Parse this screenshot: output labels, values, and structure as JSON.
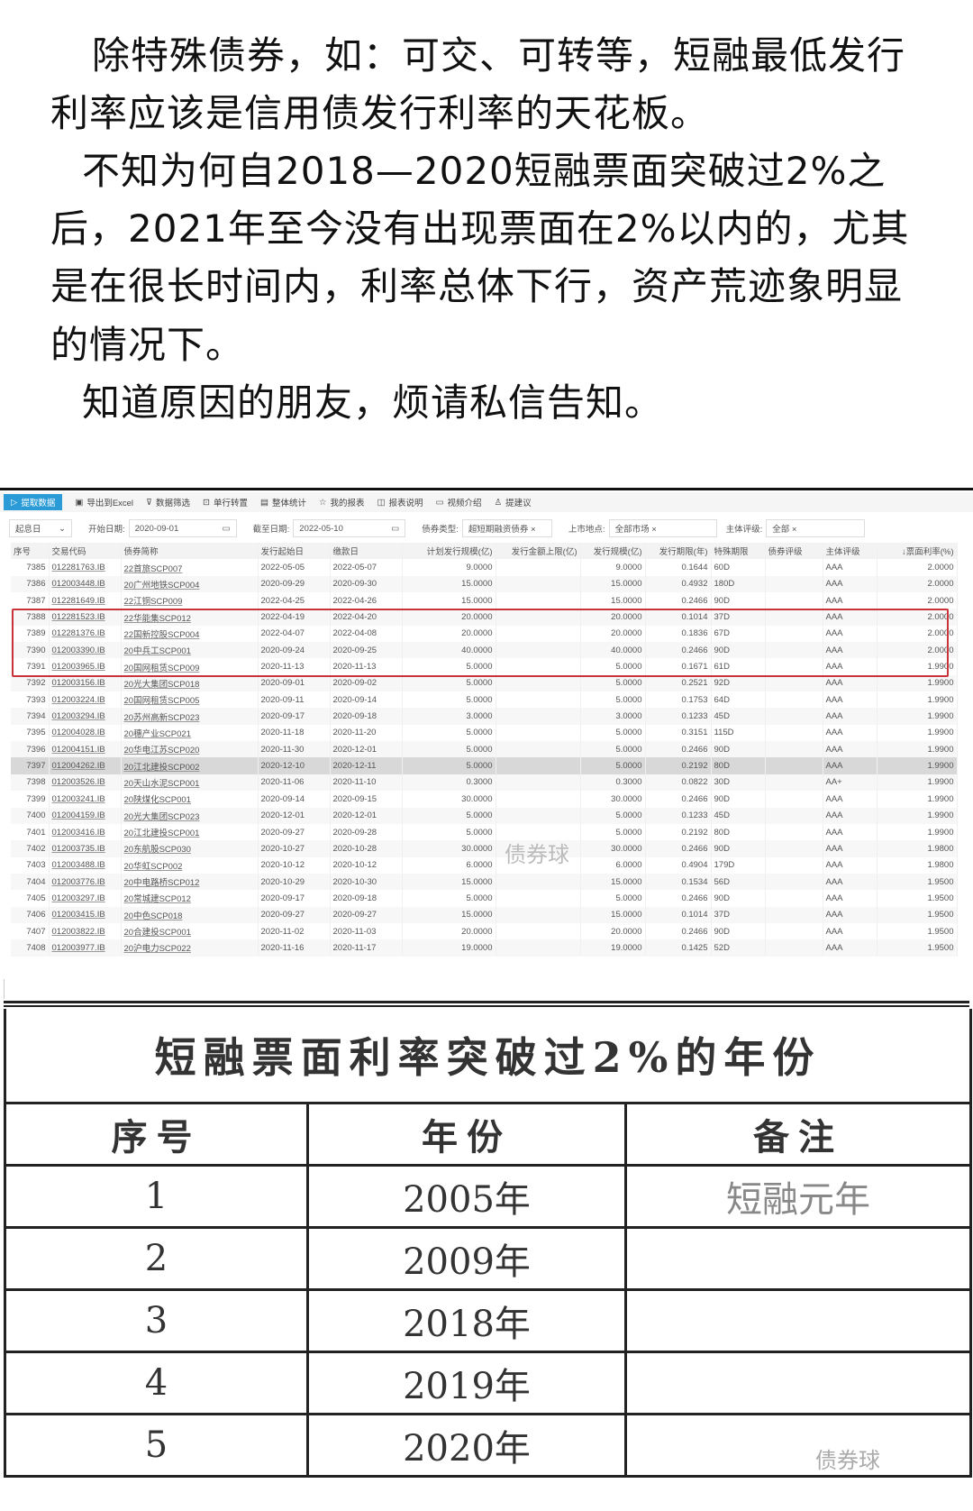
{
  "paragraph_lines": [
    "除特殊债券，如：可交、可转等，短融最低发行",
    "利率应该是信用债发行利率的天花板。",
    "不知为何自2018—2020短融票面突破过2%之",
    "后，2021年至今没有出现票面在2%以内的，尤其",
    "是在很长时间内，利率总体下行，资产荒迹象明显",
    "的情况下。",
    "知道原因的朋友，烦请私信告知。"
  ],
  "toolbar": {
    "items": [
      "提取数据",
      "导出到Excel",
      "数据筛选",
      "单行转置",
      "整体统计",
      "我的报表",
      "报表说明",
      "视频介绍",
      "提建议"
    ],
    "accent": "#2a9bd6"
  },
  "filters": {
    "date_type": "起息日",
    "start_label": "开始日期:",
    "start_value": "2020-09-01",
    "end_label": "截至日期:",
    "end_value": "2022-05-10",
    "bond_type_label": "债券类型:",
    "bond_type_value": "超短期融资债券 ×",
    "market_label": "上市地点:",
    "market_value": "全部市场 ×",
    "rating_label": "主体评级:",
    "rating_value": "全部 ×"
  },
  "table": {
    "columns": [
      "序号",
      "交易代码",
      "债券简称",
      "发行起始日",
      "缴款日",
      "计划发行规模(亿)",
      "发行金额上限(亿)",
      "发行规模(亿)",
      "发行期限(年)",
      "特殊期限",
      "债券评级",
      "主体评级",
      "↓票面利率(%)"
    ],
    "rows": [
      [
        "7385",
        "012281763.IB",
        "22首旅SCP007",
        "2022-05-05",
        "2022-05-07",
        "9.0000",
        "",
        "9.0000",
        "0.1644",
        "60D",
        "",
        "AAA",
        "2.0000"
      ],
      [
        "7386",
        "012003448.IB",
        "20广州地铁SCP004",
        "2020-09-29",
        "2020-09-30",
        "15.0000",
        "",
        "15.0000",
        "0.4932",
        "180D",
        "",
        "AAA",
        "2.0000"
      ],
      [
        "7387",
        "012281649.IB",
        "22江铜SCP009",
        "2022-04-25",
        "2022-04-26",
        "15.0000",
        "",
        "15.0000",
        "0.2466",
        "90D",
        "",
        "AAA",
        "2.0000"
      ],
      [
        "7388",
        "012281523.IB",
        "22华能集SCP012",
        "2022-04-19",
        "2022-04-20",
        "20.0000",
        "",
        "20.0000",
        "0.1014",
        "37D",
        "",
        "AAA",
        "2.0000"
      ],
      [
        "7389",
        "012281376.IB",
        "22国新控股SCP004",
        "2022-04-07",
        "2022-04-08",
        "20.0000",
        "",
        "20.0000",
        "0.1836",
        "67D",
        "",
        "AAA",
        "2.0000"
      ],
      [
        "7390",
        "012003390.IB",
        "20中兵工SCP001",
        "2020-09-24",
        "2020-09-25",
        "40.0000",
        "",
        "40.0000",
        "0.2466",
        "90D",
        "",
        "AAA",
        "2.0000"
      ],
      [
        "7391",
        "012003965.IB",
        "20国网租赁SCP009",
        "2020-11-13",
        "2020-11-13",
        "5.0000",
        "",
        "5.0000",
        "0.1671",
        "61D",
        "",
        "AAA",
        "1.9900"
      ],
      [
        "7392",
        "012003156.IB",
        "20光大集团SCP018",
        "2020-09-01",
        "2020-09-02",
        "5.0000",
        "",
        "5.0000",
        "0.2521",
        "92D",
        "",
        "AAA",
        "1.9900"
      ],
      [
        "7393",
        "012003224.IB",
        "20国网租赁SCP005",
        "2020-09-11",
        "2020-09-14",
        "5.0000",
        "",
        "5.0000",
        "0.1753",
        "64D",
        "",
        "AAA",
        "1.9900"
      ],
      [
        "7394",
        "012003294.IB",
        "20苏州高新SCP023",
        "2020-09-17",
        "2020-09-18",
        "3.0000",
        "",
        "3.0000",
        "0.1233",
        "45D",
        "",
        "AAA",
        "1.9900"
      ],
      [
        "7395",
        "012004028.IB",
        "20穗产业SCP021",
        "2020-11-18",
        "2020-11-20",
        "5.0000",
        "",
        "5.0000",
        "0.3151",
        "115D",
        "",
        "AAA",
        "1.9900"
      ],
      [
        "7396",
        "012004151.IB",
        "20华电江苏SCP020",
        "2020-11-30",
        "2020-12-01",
        "5.0000",
        "",
        "5.0000",
        "0.2466",
        "90D",
        "",
        "AAA",
        "1.9900"
      ],
      [
        "7397",
        "012004262.IB",
        "20江北建投SCP002",
        "2020-12-10",
        "2020-12-11",
        "5.0000",
        "",
        "5.0000",
        "0.2192",
        "80D",
        "",
        "AAA",
        "1.9900"
      ],
      [
        "7398",
        "012003526.IB",
        "20天山水泥SCP001",
        "2020-11-06",
        "2020-11-10",
        "0.3000",
        "",
        "0.3000",
        "0.0822",
        "30D",
        "",
        "AA+",
        "1.9900"
      ],
      [
        "7399",
        "012003241.IB",
        "20陕煤化SCP001",
        "2020-09-14",
        "2020-09-15",
        "30.0000",
        "",
        "30.0000",
        "0.2466",
        "90D",
        "",
        "AAA",
        "1.9900"
      ],
      [
        "7400",
        "012004159.IB",
        "20光大集团SCP023",
        "2020-12-01",
        "2020-12-01",
        "5.0000",
        "",
        "5.0000",
        "0.1233",
        "45D",
        "",
        "AAA",
        "1.9900"
      ],
      [
        "7401",
        "012003416.IB",
        "20江北建投SCP001",
        "2020-09-27",
        "2020-09-28",
        "5.0000",
        "",
        "5.0000",
        "0.2192",
        "80D",
        "",
        "AAA",
        "1.9900"
      ],
      [
        "7402",
        "012003735.IB",
        "20东航股SCP030",
        "2020-10-27",
        "2020-10-28",
        "30.0000",
        "",
        "30.0000",
        "0.2466",
        "90D",
        "",
        "AAA",
        "1.9800"
      ],
      [
        "7403",
        "012003488.IB",
        "20华虹SCP002",
        "2020-10-12",
        "2020-10-12",
        "6.0000",
        "",
        "6.0000",
        "0.4904",
        "179D",
        "",
        "AAA",
        "1.9800"
      ],
      [
        "7404",
        "012003776.IB",
        "20中电路桥SCP012",
        "2020-10-29",
        "2020-10-30",
        "15.0000",
        "",
        "15.0000",
        "0.1534",
        "56D",
        "",
        "AAA",
        "1.9500"
      ],
      [
        "7405",
        "012003297.IB",
        "20常城建SCP012",
        "2020-09-17",
        "2020-09-18",
        "5.0000",
        "",
        "5.0000",
        "0.2466",
        "90D",
        "",
        "AAA",
        "1.9500"
      ],
      [
        "7406",
        "012003415.IB",
        "20中色SCP018",
        "2020-09-27",
        "2020-09-27",
        "15.0000",
        "",
        "15.0000",
        "0.1014",
        "37D",
        "",
        "AAA",
        "1.9500"
      ],
      [
        "7407",
        "012003822.IB",
        "20合建投SCP001",
        "2020-11-02",
        "2020-11-03",
        "20.0000",
        "",
        "20.0000",
        "0.2466",
        "90D",
        "",
        "AAA",
        "1.9500"
      ],
      [
        "7408",
        "012003977.IB",
        "20沪电力SCP022",
        "2020-11-16",
        "2020-11-17",
        "19.0000",
        "",
        "19.0000",
        "0.1425",
        "52D",
        "",
        "AAA",
        "1.9500"
      ]
    ],
    "selected_row": "7397",
    "highlight_color": "#c8343a"
  },
  "watermark": "债券球",
  "years_table": {
    "title": "短融票面利率突破过2%的年份",
    "columns": [
      "序号",
      "年份",
      "备注"
    ],
    "rows": [
      [
        "1",
        "2005年",
        "短融元年"
      ],
      [
        "2",
        "2009年",
        ""
      ],
      [
        "3",
        "2018年",
        ""
      ],
      [
        "4",
        "2019年",
        ""
      ],
      [
        "5",
        "2020年",
        ""
      ]
    ]
  }
}
